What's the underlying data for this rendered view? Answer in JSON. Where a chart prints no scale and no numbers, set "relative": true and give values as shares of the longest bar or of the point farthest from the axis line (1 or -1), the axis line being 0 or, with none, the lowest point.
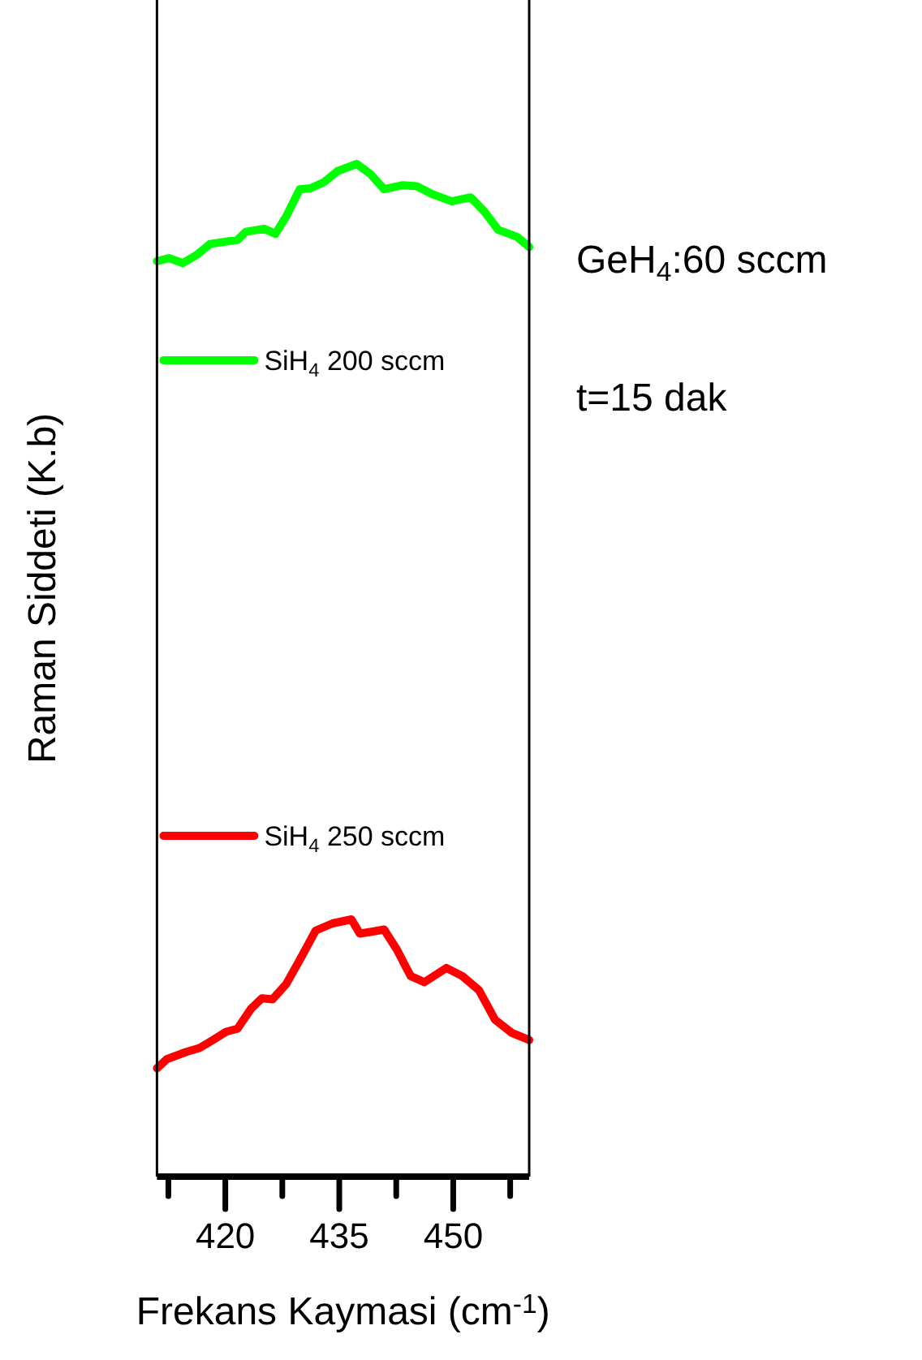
{
  "chart_data": {
    "type": "line",
    "relative": true,
    "xlabel": "Frekans Kaymasi (cm$^{-1}$)",
    "ylabel": "Raman Siddeti (K.b)",
    "annotations": [
      "GeH$_{4}$:60 sccm",
      "t=15 dak"
    ],
    "xlim": [
      411,
      460
    ],
    "xticks": [
      {
        "value": 412.5,
        "label": null
      },
      420,
      {
        "value": 427.5,
        "label": null
      },
      435,
      {
        "value": 442.5,
        "label": null
      },
      450,
      {
        "value": 457.5,
        "label": null
      }
    ],
    "legend": "left",
    "grid": false,
    "series": [
      {
        "name": "SiH$_{4}$ 200 sccm",
        "color": "#00ff00",
        "x": [
          411,
          412.6,
          414.4,
          416.2,
          418.0,
          419.8,
          421.6,
          422.7,
          425.1,
          426.6,
          428.0,
          429.8,
          431.2,
          433.0,
          434.8,
          437.3,
          439.1,
          440.9,
          443.4,
          445.2,
          447.3,
          449.8,
          452.3,
          454.1,
          455.9,
          458.4,
          460
        ],
        "values": [
          0.904,
          0.907,
          0.902,
          0.91,
          0.921,
          0.923,
          0.925,
          0.933,
          0.936,
          0.931,
          0.948,
          0.975,
          0.976,
          0.982,
          0.993,
          1.0,
          0.99,
          0.975,
          0.979,
          0.978,
          0.97,
          0.963,
          0.967,
          0.953,
          0.935,
          0.928,
          0.918
        ]
      },
      {
        "name": "SiH$_{4}$ 250 sccm",
        "color": "#ff0000",
        "x": [
          411,
          412.3,
          414.8,
          416.6,
          418.4,
          420.1,
          421.6,
          423.4,
          424.8,
          426.2,
          428.0,
          429.8,
          431.9,
          434.1,
          436.6,
          437.7,
          439.4,
          440.9,
          442.6,
          444.4,
          446.2,
          449.1,
          451.2,
          453.4,
          455.5,
          457.7,
          460
        ],
        "values": [
          0.107,
          0.116,
          0.123,
          0.127,
          0.135,
          0.143,
          0.146,
          0.166,
          0.176,
          0.175,
          0.19,
          0.214,
          0.243,
          0.25,
          0.254,
          0.24,
          0.242,
          0.244,
          0.224,
          0.198,
          0.192,
          0.206,
          0.198,
          0.184,
          0.155,
          0.142,
          0.135
        ]
      }
    ]
  }
}
